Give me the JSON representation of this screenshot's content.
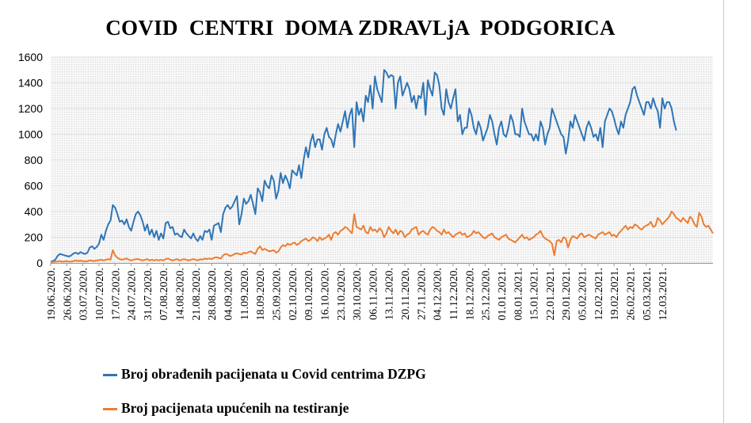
{
  "chart_data": {
    "type": "line",
    "title": "COVID  CENTRI  DOMA ZDRAVLjA  PODGORICA",
    "xlabel": "",
    "ylabel": "",
    "ylim": [
      0,
      1600
    ],
    "yticks": [
      0,
      200,
      400,
      600,
      800,
      1000,
      1200,
      1400,
      1600
    ],
    "grid": "dotted background",
    "legend": "bottom",
    "x_tick_labels": [
      "19.06.2020.",
      "26.06.2020.",
      "03.07.2020.",
      "10.07.2020.",
      "17.07.2020.",
      "24.07.2020.",
      "31.07.2020.",
      "07.08.2020.",
      "14.08.2020.",
      "21.08.2020.",
      "28.08.2020.",
      "04.09.2020.",
      "11.09.2020.",
      "18.09.2020.",
      "25.09.2020.",
      "02.10.2020.",
      "09.10.2020.",
      "16.10.2020.",
      "23.10.2020.",
      "30.10.2020.",
      "06.11.2020.",
      "13.11.2020.",
      "20.11.2020.",
      "27.11.2020.",
      "04.12.2020.",
      "11.12.2020.",
      "18.12.2020.",
      "25.12.2020.",
      "01.01.2021.",
      "08.01.2021.",
      "15.01.2021.",
      "22.01.2021.",
      "29.01.2021.",
      "05.02.2021.",
      "12.02.2021.",
      "19.02.2021.",
      "26.02.2021.",
      "05.03.2021.",
      "12.03.2021."
    ],
    "x_start": "19.06.2020.",
    "x_step_days": 1,
    "series": [
      {
        "name": "Broj obrađenih pacijenata u Covid centrima DZPG",
        "color": "#2e75b6",
        "values": [
          10,
          15,
          25,
          55,
          70,
          65,
          60,
          55,
          50,
          60,
          75,
          80,
          70,
          85,
          75,
          70,
          80,
          120,
          130,
          110,
          125,
          150,
          220,
          180,
          250,
          300,
          330,
          450,
          430,
          380,
          320,
          330,
          300,
          340,
          280,
          250,
          320,
          380,
          400,
          370,
          320,
          250,
          300,
          220,
          260,
          200,
          250,
          180,
          230,
          190,
          310,
          320,
          270,
          280,
          220,
          230,
          210,
          200,
          260,
          230,
          210,
          190,
          230,
          190,
          170,
          210,
          180,
          250,
          240,
          260,
          180,
          290,
          300,
          310,
          240,
          380,
          430,
          450,
          420,
          440,
          480,
          520,
          300,
          380,
          500,
          460,
          480,
          530,
          460,
          380,
          580,
          550,
          480,
          640,
          600,
          580,
          680,
          640,
          500,
          560,
          700,
          620,
          680,
          640,
          580,
          720,
          700,
          680,
          760,
          660,
          800,
          900,
          820,
          940,
          1000,
          900,
          960,
          960,
          880,
          1000,
          1050,
          980,
          960,
          900,
          1000,
          1080,
          1020,
          1100,
          1180,
          1050,
          1150,
          1200,
          900,
          1250,
          1150,
          1200,
          1100,
          1300,
          1250,
          1380,
          1200,
          1450,
          1350,
          1300,
          1250,
          1500,
          1480,
          1440,
          1460,
          1450,
          1200,
          1400,
          1450,
          1300,
          1350,
          1400,
          1350,
          1250,
          1300,
          1200,
          1300,
          1280,
          1400,
          1150,
          1420,
          1350,
          1300,
          1480,
          1460,
          1380,
          1200,
          1150,
          1350,
          1250,
          1200,
          1280,
          1350,
          1100,
          1150,
          1000,
          1050,
          1050,
          1200,
          1150,
          1050,
          1000,
          1100,
          1050,
          950,
          1000,
          1050,
          1150,
          1100,
          1000,
          920,
          1050,
          1100,
          1000,
          980,
          1050,
          1150,
          1100,
          1000,
          1000,
          980,
          1200,
          1100,
          1050,
          1000,
          1000,
          950,
          1000,
          950,
          1100,
          1050,
          920,
          1000,
          1050,
          1200,
          1150,
          1100,
          1050,
          1000,
          980,
          850,
          950,
          1100,
          1050,
          1150,
          1100,
          1050,
          1000,
          950,
          1050,
          1100,
          1050,
          980,
          1000,
          950,
          1050,
          900,
          1100,
          1150,
          1200,
          1180,
          1120,
          1050,
          1000,
          1100,
          1050,
          1150,
          1200,
          1250,
          1350,
          1370,
          1300,
          1250,
          1200,
          1150,
          1250,
          1250,
          1200,
          1280,
          1220,
          1180,
          1050,
          1280,
          1200,
          1250,
          1250,
          1200,
          1100,
          1030
        ]
      },
      {
        "name": "Broj pacijenata upućenih na testiranje",
        "color": "#ed7d31",
        "values": [
          5,
          8,
          10,
          12,
          15,
          10,
          12,
          15,
          10,
          12,
          15,
          20,
          15,
          18,
          15,
          12,
          15,
          20,
          18,
          15,
          20,
          22,
          25,
          20,
          25,
          30,
          25,
          100,
          60,
          40,
          30,
          25,
          30,
          35,
          25,
          20,
          25,
          30,
          30,
          25,
          20,
          25,
          30,
          20,
          25,
          20,
          25,
          20,
          25,
          20,
          30,
          35,
          25,
          20,
          25,
          30,
          20,
          25,
          30,
          25,
          20,
          25,
          30,
          25,
          20,
          30,
          25,
          35,
          30,
          35,
          30,
          40,
          45,
          40,
          35,
          60,
          70,
          65,
          55,
          60,
          70,
          75,
          70,
          65,
          80,
          75,
          85,
          90,
          80,
          70,
          110,
          130,
          100,
          110,
          100,
          90,
          95,
          100,
          80,
          90,
          120,
          140,
          130,
          150,
          140,
          150,
          160,
          140,
          150,
          170,
          180,
          190,
          170,
          180,
          200,
          190,
          170,
          200,
          180,
          190,
          200,
          220,
          180,
          230,
          240,
          220,
          250,
          260,
          280,
          270,
          250,
          230,
          380,
          280,
          270,
          260,
          290,
          240,
          230,
          280,
          250,
          260,
          240,
          270,
          250,
          200,
          230,
          280,
          250,
          230,
          260,
          220,
          250,
          240,
          200,
          220,
          230,
          260,
          270,
          280,
          220,
          240,
          250,
          230,
          220,
          260,
          280,
          270,
          250,
          240,
          220,
          260,
          230,
          240,
          220,
          200,
          220,
          230,
          240,
          220,
          230,
          200,
          210,
          220,
          250,
          230,
          240,
          220,
          200,
          190,
          210,
          220,
          230,
          200,
          190,
          180,
          200,
          210,
          220,
          190,
          180,
          170,
          160,
          180,
          200,
          220,
          190,
          200,
          180,
          190,
          200,
          220,
          230,
          250,
          210,
          190,
          180,
          170,
          150,
          60,
          170,
          180,
          160,
          200,
          190,
          120,
          180,
          210,
          200,
          190,
          220,
          230,
          200,
          210,
          220,
          210,
          200,
          190,
          220,
          230,
          240,
          220,
          230,
          240,
          210,
          220,
          200,
          230,
          250,
          270,
          290,
          260,
          280,
          270,
          300,
          290,
          270,
          260,
          280,
          290,
          300,
          320,
          280,
          290,
          350,
          330,
          300,
          320,
          340,
          360,
          400,
          380,
          350,
          340,
          320,
          350,
          330,
          310,
          360,
          340,
          300,
          280,
          390,
          360,
          300,
          280,
          290,
          260,
          230
        ]
      }
    ]
  }
}
